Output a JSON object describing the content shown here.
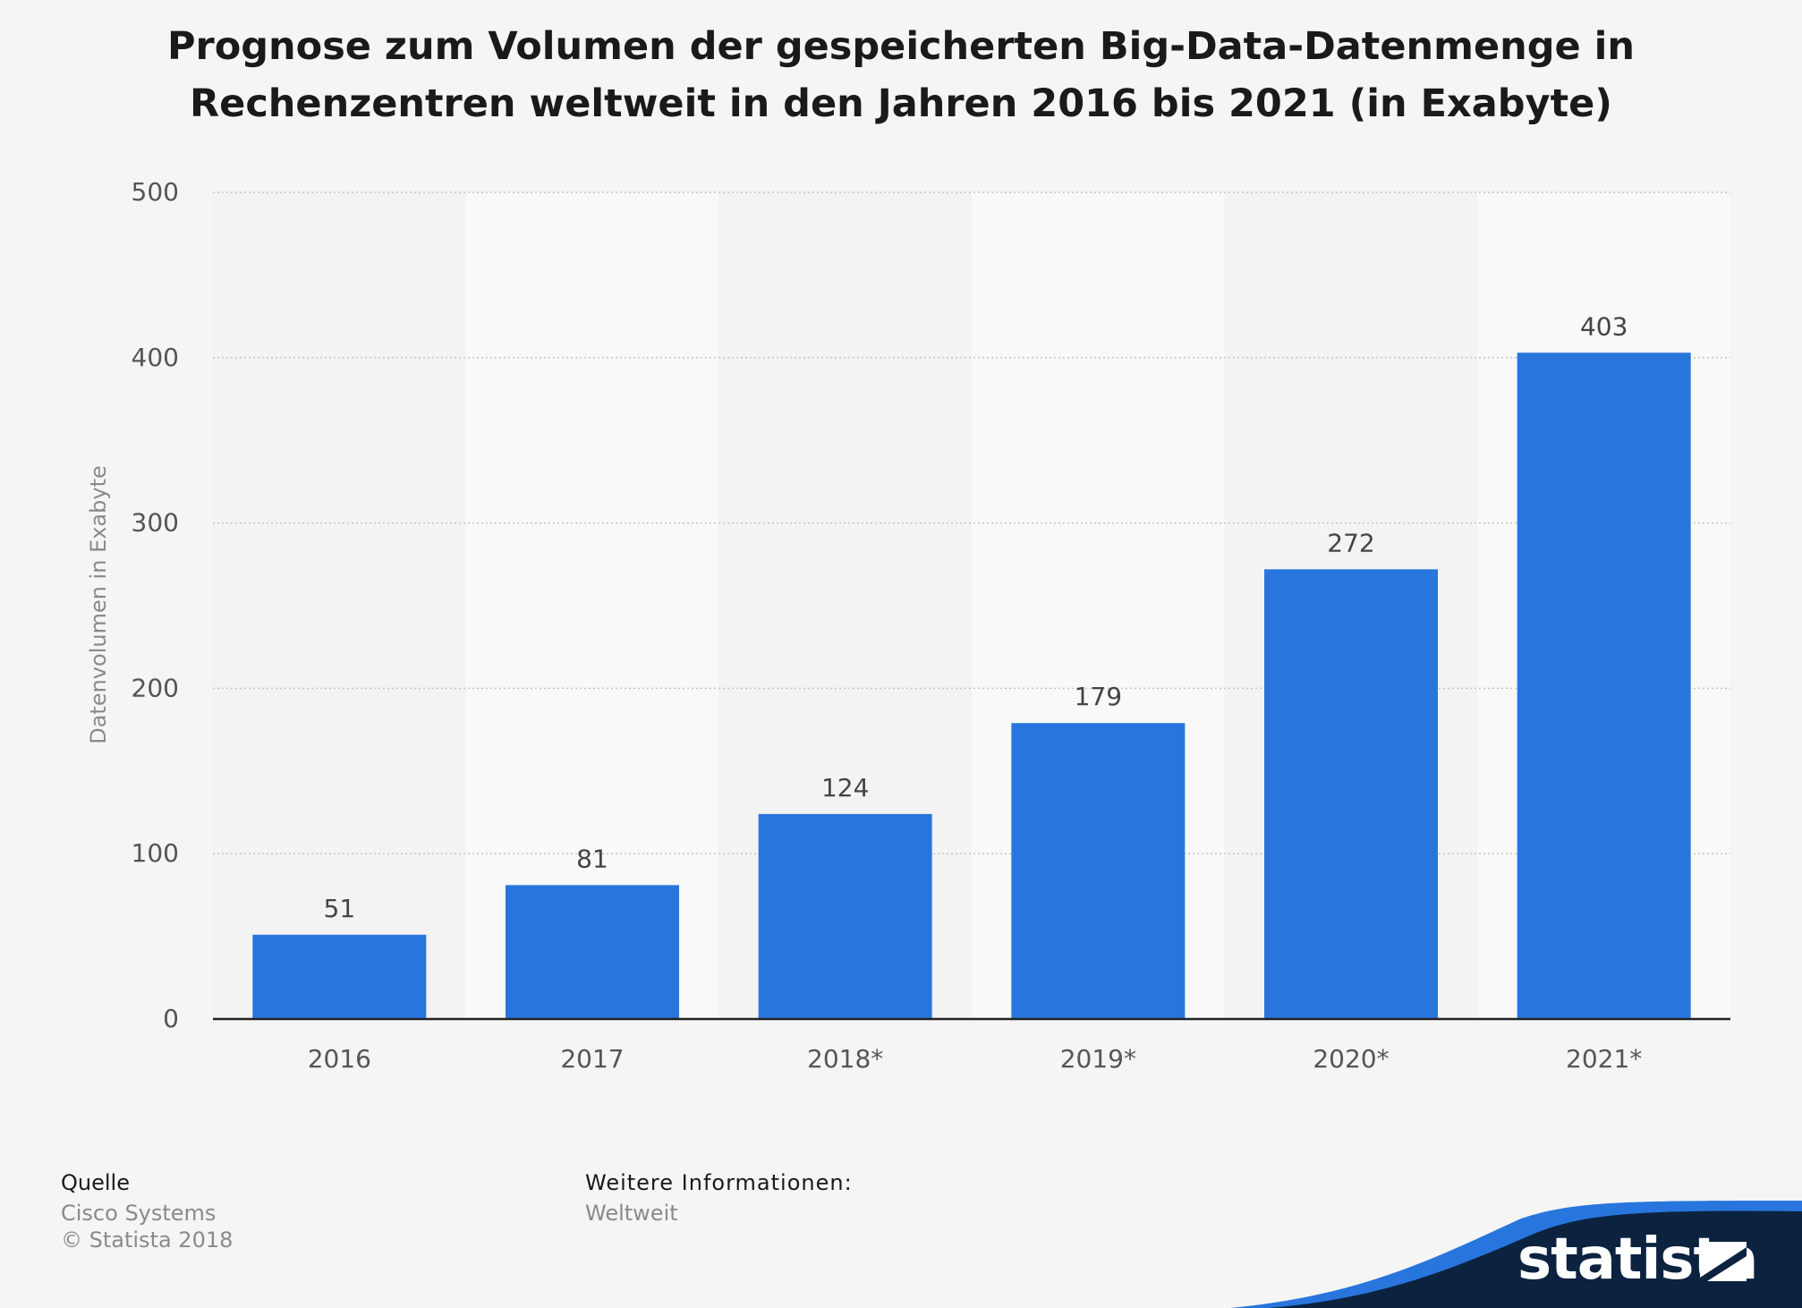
{
  "chart_data": {
    "type": "bar",
    "title": "Prognose zum Volumen der gespeicherten Big-Data-Datenmenge in Rechenzentren weltweit in den Jahren 2016 bis 2021 (in Exabyte)",
    "xlabel": "",
    "ylabel": "Datenvolumen in Exabyte",
    "categories": [
      "2016",
      "2017",
      "2018*",
      "2019*",
      "2020*",
      "2021*"
    ],
    "values": [
      51,
      81,
      124,
      179,
      272,
      403
    ],
    "ylim": [
      0,
      500
    ],
    "yticks": [
      "0",
      "100",
      "200",
      "300",
      "400",
      "500"
    ],
    "grid": true,
    "bar_color": "#2876dd"
  },
  "footer": {
    "source_label": "Quelle",
    "source_value": "Cisco Systems",
    "copyright": "© Statista 2018",
    "info_label": "Weitere Informationen:",
    "info_value": "Weltweit"
  },
  "brand": {
    "name": "statista",
    "logo": "statista-logo-icon",
    "colors": {
      "swoosh_dark": "#0c2340",
      "swoosh_blue": "#2876dd"
    }
  }
}
